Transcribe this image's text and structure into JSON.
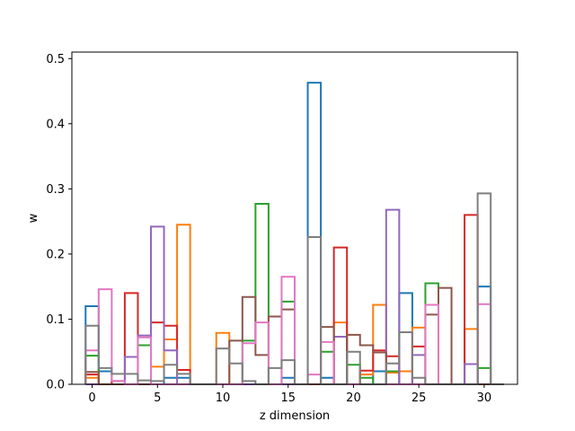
{
  "chart_data": {
    "type": "bar",
    "style": "step-histogram",
    "title": "",
    "xlabel": "z dimension",
    "ylabel": "w",
    "xlim": [
      -1.55,
      32.55
    ],
    "ylim": [
      0,
      0.51
    ],
    "xticks": [
      0,
      5,
      10,
      15,
      20,
      25,
      30
    ],
    "yticks": [
      0.0,
      0.1,
      0.2,
      0.3,
      0.4,
      0.5
    ],
    "ytick_labels": [
      "0.0",
      "0.1",
      "0.2",
      "0.3",
      "0.4",
      "0.5"
    ],
    "bin_start": -0.5,
    "bin_width": 1,
    "grid": false,
    "legend": "none",
    "series": [
      {
        "color": "#1f77b4",
        "values": [
          0.12,
          0.02,
          0.0,
          0.0,
          0.0,
          0.0,
          0.01,
          0.01,
          0.0,
          0.0,
          0.0,
          0.0,
          0.0,
          0.0,
          0.0,
          0.01,
          0.0,
          0.463,
          0.01,
          0.0,
          0.0,
          0.0,
          0.02,
          0.0,
          0.14,
          0.0,
          0.0,
          0.0,
          0.0,
          0.0,
          0.15,
          0.0
        ]
      },
      {
        "color": "#ff7f0e",
        "values": [
          0.01,
          0.0,
          0.0,
          0.0,
          0.0,
          0.027,
          0.069,
          0.245,
          0.0,
          0.0,
          0.079,
          0.0,
          0.0,
          0.0,
          0.0,
          0.0,
          0.0,
          0.0,
          0.0,
          0.095,
          0.0,
          0.015,
          0.122,
          0.018,
          0.02,
          0.087,
          0.0,
          0.0,
          0.0,
          0.085,
          0.0,
          0.0
        ]
      },
      {
        "color": "#2ca02c",
        "values": [
          0.044,
          0.0,
          0.0,
          0.0,
          0.06,
          0.0,
          0.0,
          0.0,
          0.0,
          0.0,
          0.0,
          0.0,
          0.067,
          0.277,
          0.0,
          0.127,
          0.0,
          0.0,
          0.05,
          0.0,
          0.03,
          0.01,
          0.0,
          0.02,
          0.0,
          0.0,
          0.155,
          0.0,
          0.0,
          0.0,
          0.025,
          0.0
        ]
      },
      {
        "color": "#d62728",
        "values": [
          0.015,
          0.0,
          0.005,
          0.14,
          0.0,
          0.095,
          0.09,
          0.022,
          0.0,
          0.0,
          0.0,
          0.0,
          0.0,
          0.0,
          0.0,
          0.0,
          0.0,
          0.0,
          0.0,
          0.21,
          0.0,
          0.021,
          0.052,
          0.043,
          0.0,
          0.058,
          0.0,
          0.0,
          0.0,
          0.26,
          0.0,
          0.0
        ]
      },
      {
        "color": "#9467bd",
        "values": [
          0.0,
          0.0,
          0.0,
          0.042,
          0.075,
          0.242,
          0.052,
          0.0,
          0.0,
          0.0,
          0.0,
          0.0,
          0.0,
          0.0,
          0.0,
          0.0,
          0.0,
          0.0,
          0.0,
          0.073,
          0.0,
          0.0,
          0.0,
          0.268,
          0.0,
          0.045,
          0.0,
          0.0,
          0.0,
          0.031,
          0.0,
          0.0
        ]
      },
      {
        "color": "#8c564b",
        "values": [
          0.019,
          0.0,
          0.0,
          0.0,
          0.0,
          0.0,
          0.0,
          0.0,
          0.0,
          0.0,
          0.0,
          0.067,
          0.134,
          0.045,
          0.104,
          0.115,
          0.0,
          0.0,
          0.088,
          0.0,
          0.076,
          0.06,
          0.049,
          0.0,
          0.0,
          0.0,
          0.107,
          0.148,
          0.0,
          0.0,
          0.0,
          0.0
        ]
      },
      {
        "color": "#e377c2",
        "values": [
          0.052,
          0.146,
          0.005,
          0.0,
          0.072,
          0.0,
          0.0,
          0.0,
          0.0,
          0.0,
          0.0,
          0.0,
          0.063,
          0.095,
          0.0,
          0.165,
          0.0,
          0.015,
          0.065,
          0.0,
          0.0,
          0.0,
          0.0,
          0.0,
          0.0,
          0.0,
          0.122,
          0.0,
          0.0,
          0.0,
          0.123,
          0.0
        ]
      },
      {
        "color": "#7f7f7f",
        "values": [
          0.09,
          0.025,
          0.016,
          0.016,
          0.006,
          0.005,
          0.03,
          0.016,
          0.0,
          0.0,
          0.055,
          0.032,
          0.005,
          0.0,
          0.025,
          0.037,
          0.0,
          0.226,
          0.0,
          0.0,
          0.05,
          0.0,
          0.0,
          0.032,
          0.08,
          0.01,
          0.0,
          0.0,
          0.0,
          0.0,
          0.293,
          0.0
        ]
      }
    ]
  }
}
